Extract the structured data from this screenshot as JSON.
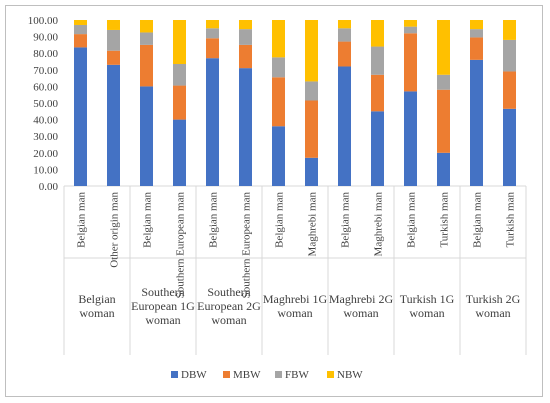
{
  "chart_data": {
    "type": "bar",
    "stacked": true,
    "title": "",
    "xlabel": "",
    "ylabel": "",
    "ylim": [
      0,
      100
    ],
    "yticks": [
      "0.00",
      "10.00",
      "20.00",
      "30.00",
      "40.00",
      "50.00",
      "60.00",
      "70.00",
      "80.00",
      "90.00",
      "100.00"
    ],
    "grid": false,
    "legend_position": "bottom",
    "groups": [
      {
        "label": "Belgian woman",
        "label_lines": [
          "Belgian",
          "woman"
        ],
        "categories": [
          "Belgian man",
          "Other origin man"
        ]
      },
      {
        "label": "Southern European 1G woman",
        "label_lines": [
          "Southern",
          "European 1G",
          "woman"
        ],
        "categories": [
          "Belgian man",
          "Southern European man"
        ]
      },
      {
        "label": "Southern European 2G woman",
        "label_lines": [
          "Southern",
          "European 2G",
          "woman"
        ],
        "categories": [
          "Belgian man",
          "Southern European man"
        ]
      },
      {
        "label": "Maghrebi 1G woman",
        "label_lines": [
          "Maghrebi 1G",
          "woman"
        ],
        "categories": [
          "Belgian man",
          "Maghrebi man"
        ]
      },
      {
        "label": "Maghrebi 2G woman",
        "label_lines": [
          "Maghrebi 2G",
          "woman"
        ],
        "categories": [
          "Belgian man",
          "Maghrebi man"
        ]
      },
      {
        "label": "Turkish 1G woman",
        "label_lines": [
          "Turkish 1G",
          "woman"
        ],
        "categories": [
          "Belgian man",
          "Turkish man"
        ]
      },
      {
        "label": "Turkish 2G woman",
        "label_lines": [
          "Turkish 2G",
          "woman"
        ],
        "categories": [
          "Belgian man",
          "Turkish man"
        ]
      }
    ],
    "series": [
      {
        "name": "DBW",
        "color": "#4472c4",
        "values": [
          83.5,
          73,
          60,
          40,
          77,
          71,
          36,
          17,
          72,
          45,
          57,
          20,
          76,
          46.5
        ]
      },
      {
        "name": "MBW",
        "color": "#ed7d31",
        "values": [
          8,
          8.5,
          25,
          20.5,
          12,
          14,
          29.5,
          34.5,
          15,
          22,
          35,
          38,
          13.5,
          22.5
        ]
      },
      {
        "name": "FBW",
        "color": "#a5a5a5",
        "values": [
          5.5,
          12.5,
          7.5,
          13,
          6,
          9.5,
          12,
          11.5,
          8,
          17,
          4,
          9,
          5,
          19
        ]
      },
      {
        "name": "NBW",
        "color": "#ffc000",
        "values": [
          3,
          6,
          7.5,
          26.5,
          5,
          5.5,
          22.5,
          37,
          5,
          16,
          4,
          33,
          5.5,
          12
        ]
      }
    ]
  }
}
